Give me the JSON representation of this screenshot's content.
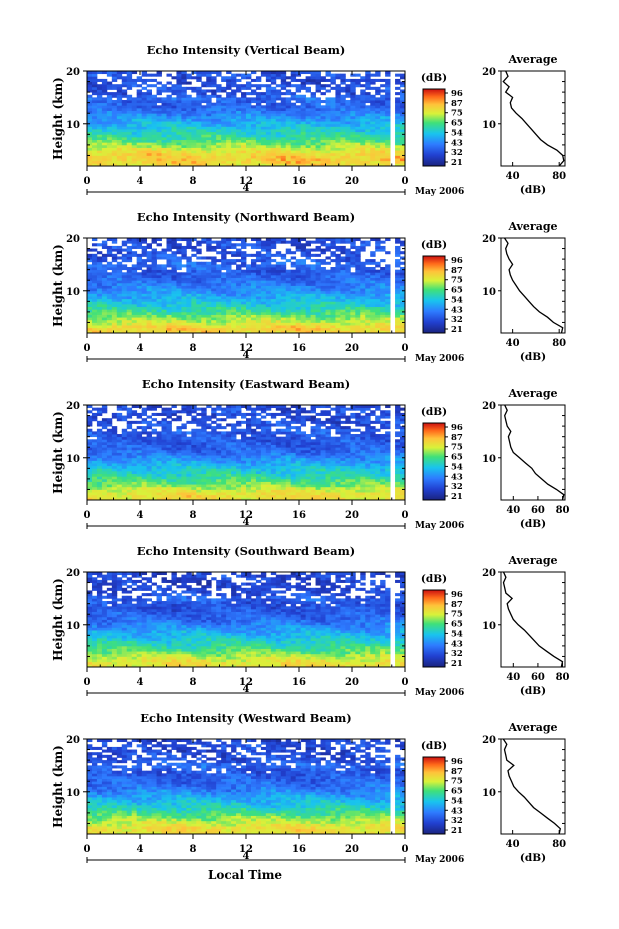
{
  "figure": {
    "xlabel": "Local Time",
    "month_label": "May 2006",
    "date_marker": "4",
    "avg_title": "Average",
    "avg_xlabel": "(dB)",
    "cbar_unit": "(dB)",
    "ylabel": "Height (km)"
  },
  "chart_data": [
    {
      "type": "heatmap",
      "title": "Echo Intensity (Vertical Beam)",
      "beam": "vertical",
      "x_ticks": [
        "0",
        "4",
        "8",
        "12",
        "16",
        "20",
        "0"
      ],
      "xlim": [
        0,
        24
      ],
      "y_ticks": [
        "20",
        "10"
      ],
      "ylim": [
        2,
        20
      ],
      "colorbar": {
        "ticks": [
          "96",
          "87",
          "75",
          "65",
          "54",
          "43",
          "32",
          "21"
        ],
        "range": [
          21,
          96
        ]
      },
      "average_profile": {
        "x_ticks": [
          "40",
          "80"
        ],
        "xlim": [
          30,
          85
        ],
        "ylim": [
          2,
          20
        ],
        "height": [
          2,
          3,
          4,
          5,
          6,
          7,
          8,
          9,
          10,
          11,
          12,
          13,
          14,
          15,
          16,
          17,
          18,
          19,
          20
        ],
        "db": [
          80,
          84,
          83,
          78,
          70,
          64,
          60,
          56,
          52,
          48,
          43,
          39,
          38,
          40,
          34,
          37,
          32,
          36,
          34
        ]
      }
    },
    {
      "type": "heatmap",
      "title": "Echo Intensity (Northward Beam)",
      "beam": "northward",
      "x_ticks": [
        "0",
        "4",
        "8",
        "12",
        "16",
        "20",
        "0"
      ],
      "xlim": [
        0,
        24
      ],
      "y_ticks": [
        "20",
        "10"
      ],
      "ylim": [
        2,
        20
      ],
      "colorbar": {
        "ticks": [
          "96",
          "87",
          "75",
          "65",
          "54",
          "43",
          "32",
          "21"
        ],
        "range": [
          21,
          96
        ]
      },
      "average_profile": {
        "x_ticks": [
          "40",
          "80"
        ],
        "xlim": [
          30,
          85
        ],
        "ylim": [
          2,
          20
        ],
        "height": [
          2,
          3,
          4,
          5,
          6,
          7,
          8,
          9,
          10,
          11,
          12,
          13,
          14,
          15,
          16,
          17,
          18,
          19,
          20
        ],
        "db": [
          82,
          83,
          75,
          70,
          63,
          58,
          54,
          50,
          46,
          43,
          40,
          38,
          37,
          40,
          37,
          35,
          34,
          36,
          33
        ]
      }
    },
    {
      "type": "heatmap",
      "title": "Echo Intensity (Eastward Beam)",
      "beam": "eastward",
      "x_ticks": [
        "0",
        "4",
        "8",
        "12",
        "16",
        "20",
        "0"
      ],
      "xlim": [
        0,
        24
      ],
      "y_ticks": [
        "20",
        "10"
      ],
      "ylim": [
        2,
        20
      ],
      "colorbar": {
        "ticks": [
          "96",
          "87",
          "75",
          "65",
          "54",
          "43",
          "32",
          "21"
        ],
        "range": [
          21,
          96
        ]
      },
      "average_profile": {
        "x_ticks": [
          "40",
          "60",
          "80"
        ],
        "xlim": [
          30,
          82
        ],
        "ylim": [
          2,
          20
        ],
        "height": [
          2,
          3,
          4,
          5,
          6,
          7,
          8,
          9,
          10,
          11,
          12,
          13,
          14,
          15,
          16,
          17,
          18,
          19,
          20
        ],
        "db": [
          80,
          81,
          75,
          68,
          63,
          58,
          55,
          50,
          45,
          40,
          38,
          37,
          36,
          38,
          35,
          34,
          33,
          35,
          33
        ]
      }
    },
    {
      "type": "heatmap",
      "title": "Echo Intensity (Southward Beam)",
      "beam": "southward",
      "x_ticks": [
        "0",
        "4",
        "8",
        "12",
        "16",
        "20",
        "0"
      ],
      "xlim": [
        0,
        24
      ],
      "y_ticks": [
        "20",
        "10"
      ],
      "ylim": [
        2,
        20
      ],
      "colorbar": {
        "ticks": [
          "96",
          "87",
          "75",
          "65",
          "54",
          "43",
          "32",
          "21"
        ],
        "range": [
          21,
          96
        ]
      },
      "average_profile": {
        "x_ticks": [
          "40",
          "60",
          "80"
        ],
        "xlim": [
          30,
          82
        ],
        "ylim": [
          2,
          20
        ],
        "height": [
          2,
          3,
          4,
          5,
          6,
          7,
          8,
          9,
          10,
          11,
          12,
          13,
          14,
          15,
          16,
          17,
          18,
          19,
          20
        ],
        "db": [
          79,
          80,
          73,
          67,
          61,
          57,
          53,
          49,
          44,
          40,
          38,
          36,
          35,
          39,
          34,
          33,
          32,
          34,
          32
        ]
      }
    },
    {
      "type": "heatmap",
      "title": "Echo Intensity (Westward Beam)",
      "beam": "westward",
      "x_ticks": [
        "0",
        "4",
        "8",
        "12",
        "16",
        "20",
        "0"
      ],
      "xlim": [
        0,
        24
      ],
      "y_ticks": [
        "20",
        "10"
      ],
      "ylim": [
        2,
        20
      ],
      "colorbar": {
        "ticks": [
          "96",
          "87",
          "75",
          "65",
          "54",
          "43",
          "32",
          "21"
        ],
        "range": [
          21,
          96
        ]
      },
      "average_profile": {
        "x_ticks": [
          "40",
          "80"
        ],
        "xlim": [
          30,
          85
        ],
        "ylim": [
          2,
          20
        ],
        "height": [
          2,
          3,
          4,
          5,
          6,
          7,
          8,
          9,
          10,
          11,
          12,
          13,
          14,
          15,
          16,
          17,
          18,
          19,
          20
        ],
        "db": [
          80,
          81,
          76,
          70,
          64,
          58,
          54,
          50,
          45,
          41,
          39,
          37,
          36,
          41,
          35,
          34,
          33,
          35,
          32
        ]
      }
    }
  ]
}
